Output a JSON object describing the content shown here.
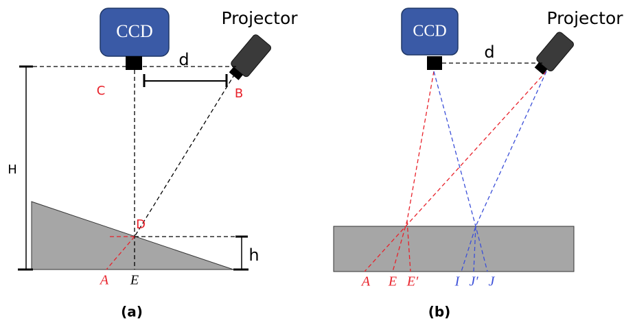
{
  "panel_a": {
    "caption": "(a)",
    "camera": "CCD",
    "projector": "Projector",
    "labels": {
      "d": "d",
      "C": "C",
      "B": "B",
      "H": "H",
      "D": "D",
      "h": "h",
      "A": "A",
      "E": "E"
    }
  },
  "panel_b": {
    "caption": "(b)",
    "camera": "CCD",
    "projector": "Projector",
    "labels": {
      "d": "d",
      "A": "A",
      "E": "E",
      "E_prime": "E′",
      "I": "I",
      "J_prime": "J′",
      "J": "J"
    }
  }
}
